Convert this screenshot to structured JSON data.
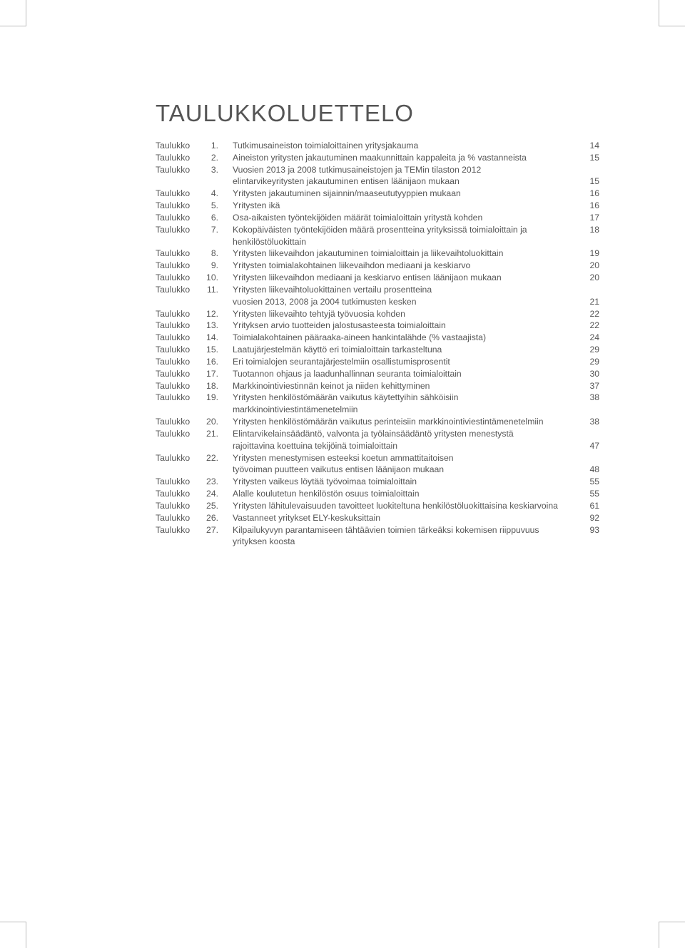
{
  "title": "TAULUKKOLUETTELO",
  "label_word": "Taulukko",
  "colors": {
    "background": "#ffffff",
    "text": "#555555",
    "title": "#555555",
    "crop_mark": "#bbbbbb"
  },
  "typography": {
    "title_fontsize_pt": 25,
    "title_weight": 300,
    "body_fontsize_pt": 9,
    "body_line_height": 1.38,
    "font_family": "Myriad Pro / Helvetica-like sans-serif"
  },
  "entries": [
    {
      "n": "1.",
      "desc": "Tutkimusaineiston toimialoittainen yritysjakauma",
      "page": "14"
    },
    {
      "n": "2.",
      "desc": "Aineiston yritysten jakautuminen maakunnittain kappaleita ja % vastanneista",
      "page": "15"
    },
    {
      "n": "3.",
      "desc": "Vuosien 2013 ja 2008 tutkimusaineistojen ja TEMin tilaston 2012",
      "page": "",
      "cont": [
        {
          "desc": "elintarvikeyritysten jakautuminen entisen läänijaon mukaan",
          "page": "15"
        }
      ]
    },
    {
      "n": "4.",
      "desc": "Yritysten jakautuminen sijainnin/maaseututyyppien mukaan",
      "page": "16"
    },
    {
      "n": "5.",
      "desc": "Yritysten ikä",
      "page": "16"
    },
    {
      "n": "6.",
      "desc": "Osa-aikaisten työntekijöiden määrät toimialoittain yritystä kohden",
      "page": "17"
    },
    {
      "n": "7.",
      "desc": "Kokopäiväisten työntekijöiden määrä prosentteina yrityksissä toimialoittain ja henkilöstöluokittain",
      "page": "18"
    },
    {
      "n": "8.",
      "desc": "Yritysten liikevaihdon jakautuminen toimialoittain ja liikevaihtoluokittain",
      "page": "19"
    },
    {
      "n": "9.",
      "desc": "Yritysten toimialakohtainen liikevaihdon mediaani ja keskiarvo",
      "page": "20"
    },
    {
      "n": "10.",
      "desc": "Yritysten liikevaihdon mediaani ja keskiarvo entisen läänijaon mukaan",
      "page": "20"
    },
    {
      "n": "11.",
      "desc": "Yritysten liikevaihtoluokittainen vertailu prosentteina",
      "page": "",
      "cont": [
        {
          "desc": "vuosien 2013, 2008 ja 2004 tutkimusten kesken",
          "page": "21"
        }
      ]
    },
    {
      "n": "12.",
      "desc": "Yritysten liikevaihto tehtyjä työvuosia kohden",
      "page": "22"
    },
    {
      "n": "13.",
      "desc": "Yrityksen arvio tuotteiden jalostusasteesta toimialoittain",
      "page": "22"
    },
    {
      "n": "14.",
      "desc": "Toimialakohtainen pääraaka-aineen hankintalähde (% vastaajista)",
      "page": "24"
    },
    {
      "n": "15.",
      "desc": "Laatujärjestelmän käyttö eri toimialoittain tarkasteltuna",
      "page": "29"
    },
    {
      "n": "16.",
      "desc": "Eri toimialojen seurantajärjestelmiin osallistumisprosentit",
      "page": "29"
    },
    {
      "n": "17.",
      "desc": "Tuotannon ohjaus ja laadunhallinnan seuranta toimialoittain",
      "page": "30"
    },
    {
      "n": "18.",
      "desc": "Markkinointiviestinnän keinot ja niiden kehittyminen",
      "page": "37"
    },
    {
      "n": "19.",
      "desc": "Yritysten henkilöstömäärän vaikutus käytettyihin sähköisiin markkinointiviestintämenetelmiin",
      "page": "38"
    },
    {
      "n": "20.",
      "desc": "Yritysten henkilöstömäärän vaikutus perinteisiin markkinointiviestintämenetelmiin",
      "page": "38"
    },
    {
      "n": "21.",
      "desc": "Elintarvikelainsäädäntö, valvonta ja työlainsäädäntö yritysten menestystä",
      "page": "",
      "cont": [
        {
          "desc": "rajoittavina koettuina tekijöinä toimialoittain",
          "page": "47"
        }
      ]
    },
    {
      "n": "22.",
      "desc": "Yritysten menestymisen esteeksi koetun ammattitaitoisen",
      "page": "",
      "cont": [
        {
          "desc": "työvoiman puutteen vaikutus entisen läänijaon mukaan",
          "page": "48"
        }
      ]
    },
    {
      "n": "23.",
      "desc": "Yritysten vaikeus löytää työvoimaa toimialoittain",
      "page": "55"
    },
    {
      "n": "24.",
      "desc": "Alalle koulutetun henkilöstön osuus toimialoittain",
      "page": "55"
    },
    {
      "n": "25.",
      "desc": "Yritysten lähitulevaisuuden tavoitteet luokiteltuna henkilöstöluokittaisina keskiarvoina",
      "page": "61"
    },
    {
      "n": "26.",
      "desc": "Vastanneet yritykset ELY-keskuksittain",
      "page": "92"
    },
    {
      "n": "27.",
      "desc": "Kilpailukyvyn parantamiseen tähtäävien toimien tärkeäksi kokemisen riippuvuus yrityksen koosta",
      "page": "93"
    }
  ]
}
